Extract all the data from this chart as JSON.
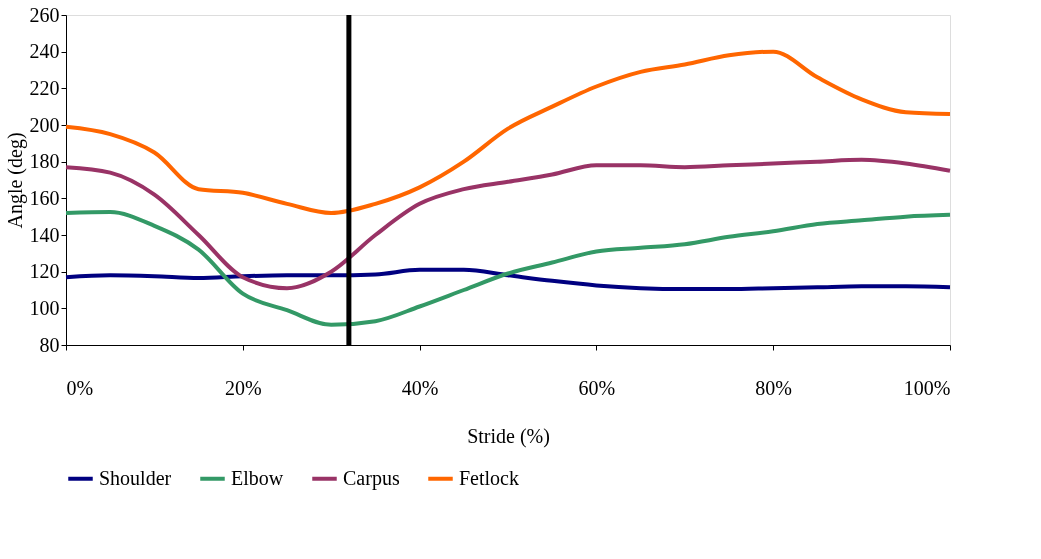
{
  "chart_data": {
    "type": "line",
    "xlabel": "Stride (%)",
    "ylabel": "Angle (deg)",
    "x": [
      0,
      5,
      10,
      15,
      20,
      25,
      30,
      35,
      40,
      45,
      50,
      55,
      60,
      65,
      70,
      75,
      80,
      85,
      90,
      95,
      100
    ],
    "series": [
      {
        "name": "Shoulder",
        "color": "#000080",
        "values": [
          117,
          118,
          117.5,
          116.5,
          117.5,
          118,
          118,
          118.5,
          121,
          121,
          118,
          115,
          112.5,
          111,
          110.5,
          110.5,
          111,
          111.5,
          112,
          112,
          111.5
        ]
      },
      {
        "name": "Elbow",
        "color": "#339966",
        "values": [
          152,
          152.5,
          145,
          132,
          108,
          99,
          91,
          93,
          101,
          110,
          119,
          125,
          131,
          133,
          135,
          139,
          142,
          146,
          148,
          150,
          151
        ]
      },
      {
        "name": "Carpus",
        "color": "#993366",
        "values": [
          177,
          174,
          162,
          140,
          117,
          111,
          120,
          140,
          157,
          165,
          169,
          173,
          178,
          178,
          177,
          178,
          179,
          180,
          181,
          179,
          175
        ]
      },
      {
        "name": "Fetlock",
        "color": "#ff6600",
        "values": [
          199,
          195,
          185,
          165,
          163,
          157,
          152,
          157,
          166,
          180,
          198,
          210,
          221,
          229,
          233,
          238,
          240,
          226,
          214,
          207,
          206
        ]
      }
    ],
    "xlim": [
      0,
      100
    ],
    "xticks": [
      {
        "value": 0,
        "label": "0%"
      },
      {
        "value": 20,
        "label": "20%"
      },
      {
        "value": 40,
        "label": "40%"
      },
      {
        "value": 60,
        "label": "60%"
      },
      {
        "value": 80,
        "label": "80%"
      },
      {
        "value": 100,
        "label": "100%"
      }
    ],
    "ylim": [
      80,
      260
    ],
    "yticks": [
      80,
      100,
      120,
      140,
      160,
      180,
      200,
      220,
      240,
      260
    ],
    "ref_lines": [
      {
        "axis": "x",
        "value": 32,
        "color": "#000000"
      }
    ],
    "legend": "bottom",
    "grid": false
  }
}
